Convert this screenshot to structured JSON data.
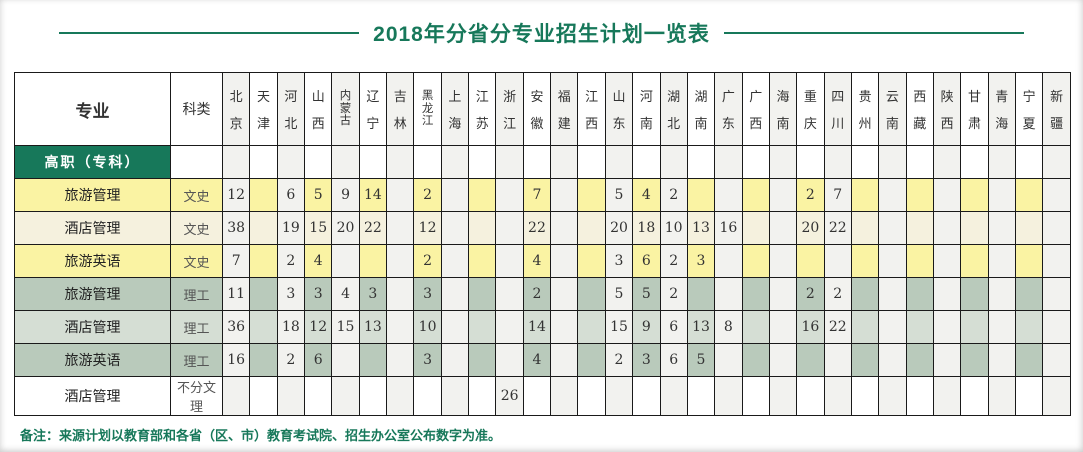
{
  "title": "2018年分省分专业招生计划一览表",
  "footer": {
    "note": "备注：来源计划以教育部和各省（区、市）教育考试院、招生办公室公布数字为准。"
  },
  "colors": {
    "accent_green": "#17785A",
    "row_yellow": "#FAF3A3",
    "row_cream": "#F5F1DE",
    "row_sage": "#B9CABB",
    "row_sage_light": "#D5DED4",
    "row_white": "#FFFFFF",
    "col_stripe": "#F2F2EF",
    "border": "#1a1a1a"
  },
  "table": {
    "col_major": "专业",
    "col_category": "科类",
    "provinces": [
      "北京",
      "天津",
      "河北",
      "山西",
      "内蒙古",
      "辽宁",
      "吉林",
      "黑龙江",
      "上海",
      "江苏",
      "浙江",
      "安徽",
      "福建",
      "江西",
      "山东",
      "河南",
      "湖北",
      "湖南",
      "广东",
      "广西",
      "海南",
      "重庆",
      "四川",
      "贵州",
      "云南",
      "西藏",
      "陕西",
      "甘肃",
      "青海",
      "宁夏",
      "新疆"
    ],
    "section_header": "高职（专科）",
    "rows": [
      {
        "major": "旅游管理",
        "category": "文史",
        "style": "yellow",
        "values": [
          "12",
          "",
          "6",
          "5",
          "9",
          "14",
          "",
          "2",
          "",
          "",
          "",
          "7",
          "",
          "",
          "5",
          "4",
          "2",
          "",
          "",
          "",
          "",
          "2",
          "7",
          "",
          "",
          "",
          "",
          "",
          "",
          "",
          ""
        ]
      },
      {
        "major": "酒店管理",
        "category": "文史",
        "style": "cream",
        "values": [
          "38",
          "",
          "19",
          "15",
          "20",
          "22",
          "",
          "12",
          "",
          "",
          "",
          "22",
          "",
          "",
          "20",
          "18",
          "10",
          "13",
          "16",
          "",
          "",
          "20",
          "22",
          "",
          "",
          "",
          "",
          "",
          "",
          "",
          ""
        ]
      },
      {
        "major": "旅游英语",
        "category": "文史",
        "style": "yellow",
        "values": [
          "7",
          "",
          "2",
          "4",
          "",
          "",
          "",
          "2",
          "",
          "",
          "",
          "4",
          "",
          "",
          "3",
          "6",
          "2",
          "3",
          "",
          "",
          "",
          "",
          "",
          "",
          "",
          "",
          "",
          "",
          "",
          "",
          ""
        ]
      },
      {
        "major": "旅游管理",
        "category": "理工",
        "style": "sage",
        "values": [
          "11",
          "",
          "3",
          "3",
          "4",
          "3",
          "",
          "3",
          "",
          "",
          "",
          "2",
          "",
          "",
          "5",
          "5",
          "2",
          "",
          "",
          "",
          "",
          "2",
          "2",
          "",
          "",
          "",
          "",
          "",
          "",
          "",
          ""
        ]
      },
      {
        "major": "酒店管理",
        "category": "理工",
        "style": "sage_light",
        "values": [
          "36",
          "",
          "18",
          "12",
          "15",
          "13",
          "",
          "10",
          "",
          "",
          "",
          "14",
          "",
          "",
          "15",
          "9",
          "6",
          "13",
          "8",
          "",
          "",
          "16",
          "22",
          "",
          "",
          "",
          "",
          "",
          "",
          "",
          ""
        ]
      },
      {
        "major": "旅游英语",
        "category": "理工",
        "style": "sage",
        "values": [
          "16",
          "",
          "2",
          "6",
          "",
          "",
          "",
          "3",
          "",
          "",
          "",
          "4",
          "",
          "",
          "2",
          "3",
          "6",
          "5",
          "",
          "",
          "",
          "",
          "",
          "",
          "",
          "",
          "",
          "",
          "",
          "",
          ""
        ]
      },
      {
        "major": "酒店管理",
        "category": "不分文理",
        "style": "white",
        "values": [
          "",
          "",
          "",
          "",
          "",
          "",
          "",
          "",
          "",
          "",
          "26",
          "",
          "",
          "",
          "",
          "",
          "",
          "",
          "",
          "",
          "",
          "",
          "",
          "",
          "",
          "",
          "",
          "",
          "",
          "",
          ""
        ]
      }
    ]
  }
}
